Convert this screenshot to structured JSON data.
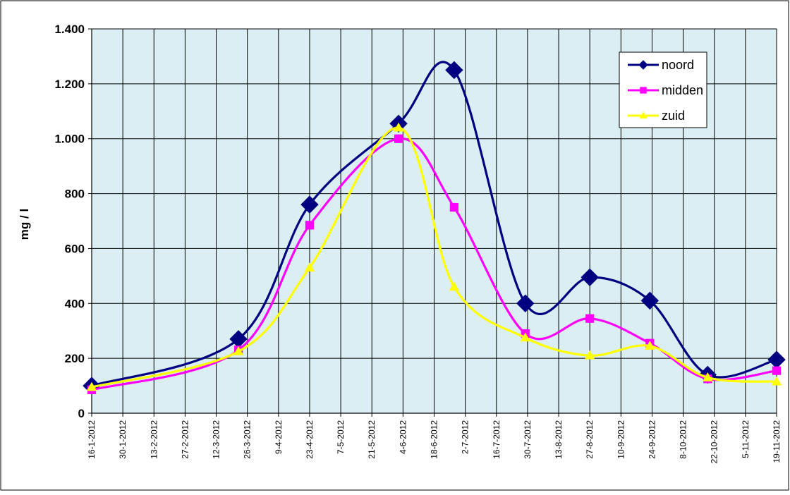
{
  "chart_data": {
    "type": "line",
    "title": "",
    "xlabel": "",
    "ylabel": "mg / l",
    "ylim": [
      0,
      1400
    ],
    "yticks": [
      0,
      200,
      400,
      600,
      800,
      1000,
      1200,
      1400
    ],
    "ytick_labels": [
      "0",
      "200",
      "400",
      "600",
      "800",
      "1.000",
      "1.200",
      "1.400"
    ],
    "x_axis_type": "date",
    "xlim": [
      "2012-01-16",
      "2012-11-19"
    ],
    "xtick_dates": [
      "2012-01-16",
      "2012-01-30",
      "2012-02-13",
      "2012-02-27",
      "2012-03-12",
      "2012-03-26",
      "2012-04-09",
      "2012-04-23",
      "2012-05-07",
      "2012-05-21",
      "2012-06-04",
      "2012-06-18",
      "2012-07-02",
      "2012-07-16",
      "2012-07-30",
      "2012-08-13",
      "2012-08-27",
      "2012-09-10",
      "2012-09-24",
      "2012-10-08",
      "2012-10-22",
      "2012-11-05",
      "2012-11-19"
    ],
    "xtick_labels": [
      "16-1-2012",
      "30-1-2012",
      "13-2-2012",
      "27-2-2012",
      "12-3-2012",
      "26-3-2012",
      "9-4-2012",
      "23-4-2012",
      "7-5-2012",
      "21-5-2012",
      "4-6-2012",
      "18-6-2012",
      "2-7-2012",
      "16-7-2012",
      "30-7-2012",
      "13-8-2012",
      "27-8-2012",
      "10-9-2012",
      "24-9-2012",
      "8-10-2012",
      "22-10-2012",
      "5-11-2012",
      "19-11-2012"
    ],
    "grid": true,
    "plot_background": "#DAEEF3",
    "legend_position": "top-right",
    "series": [
      {
        "name": "noord",
        "color": "#000080",
        "marker": "diamond",
        "points": [
          {
            "x": "2012-01-16",
            "y": 100
          },
          {
            "x": "2012-03-22",
            "y": 270
          },
          {
            "x": "2012-04-23",
            "y": 760
          },
          {
            "x": "2012-06-02",
            "y": 1055
          },
          {
            "x": "2012-06-27",
            "y": 1250
          },
          {
            "x": "2012-07-29",
            "y": 400
          },
          {
            "x": "2012-08-27",
            "y": 495
          },
          {
            "x": "2012-09-23",
            "y": 410
          },
          {
            "x": "2012-10-19",
            "y": 140
          },
          {
            "x": "2012-11-19",
            "y": 195
          }
        ]
      },
      {
        "name": "midden",
        "color": "#FF00FF",
        "marker": "square",
        "points": [
          {
            "x": "2012-01-16",
            "y": 85
          },
          {
            "x": "2012-03-22",
            "y": 230
          },
          {
            "x": "2012-04-23",
            "y": 685
          },
          {
            "x": "2012-06-02",
            "y": 1000
          },
          {
            "x": "2012-06-27",
            "y": 750
          },
          {
            "x": "2012-07-29",
            "y": 290
          },
          {
            "x": "2012-08-27",
            "y": 345
          },
          {
            "x": "2012-09-23",
            "y": 255
          },
          {
            "x": "2012-10-19",
            "y": 125
          },
          {
            "x": "2012-11-19",
            "y": 155
          }
        ]
      },
      {
        "name": "zuid",
        "color": "#FFFF00",
        "marker": "triangle",
        "points": [
          {
            "x": "2012-01-16",
            "y": 95
          },
          {
            "x": "2012-03-22",
            "y": 225
          },
          {
            "x": "2012-04-23",
            "y": 530
          },
          {
            "x": "2012-06-02",
            "y": 1040
          },
          {
            "x": "2012-06-27",
            "y": 460
          },
          {
            "x": "2012-07-29",
            "y": 275
          },
          {
            "x": "2012-08-27",
            "y": 210
          },
          {
            "x": "2012-09-23",
            "y": 245
          },
          {
            "x": "2012-10-19",
            "y": 130
          },
          {
            "x": "2012-11-19",
            "y": 115
          }
        ]
      }
    ]
  }
}
